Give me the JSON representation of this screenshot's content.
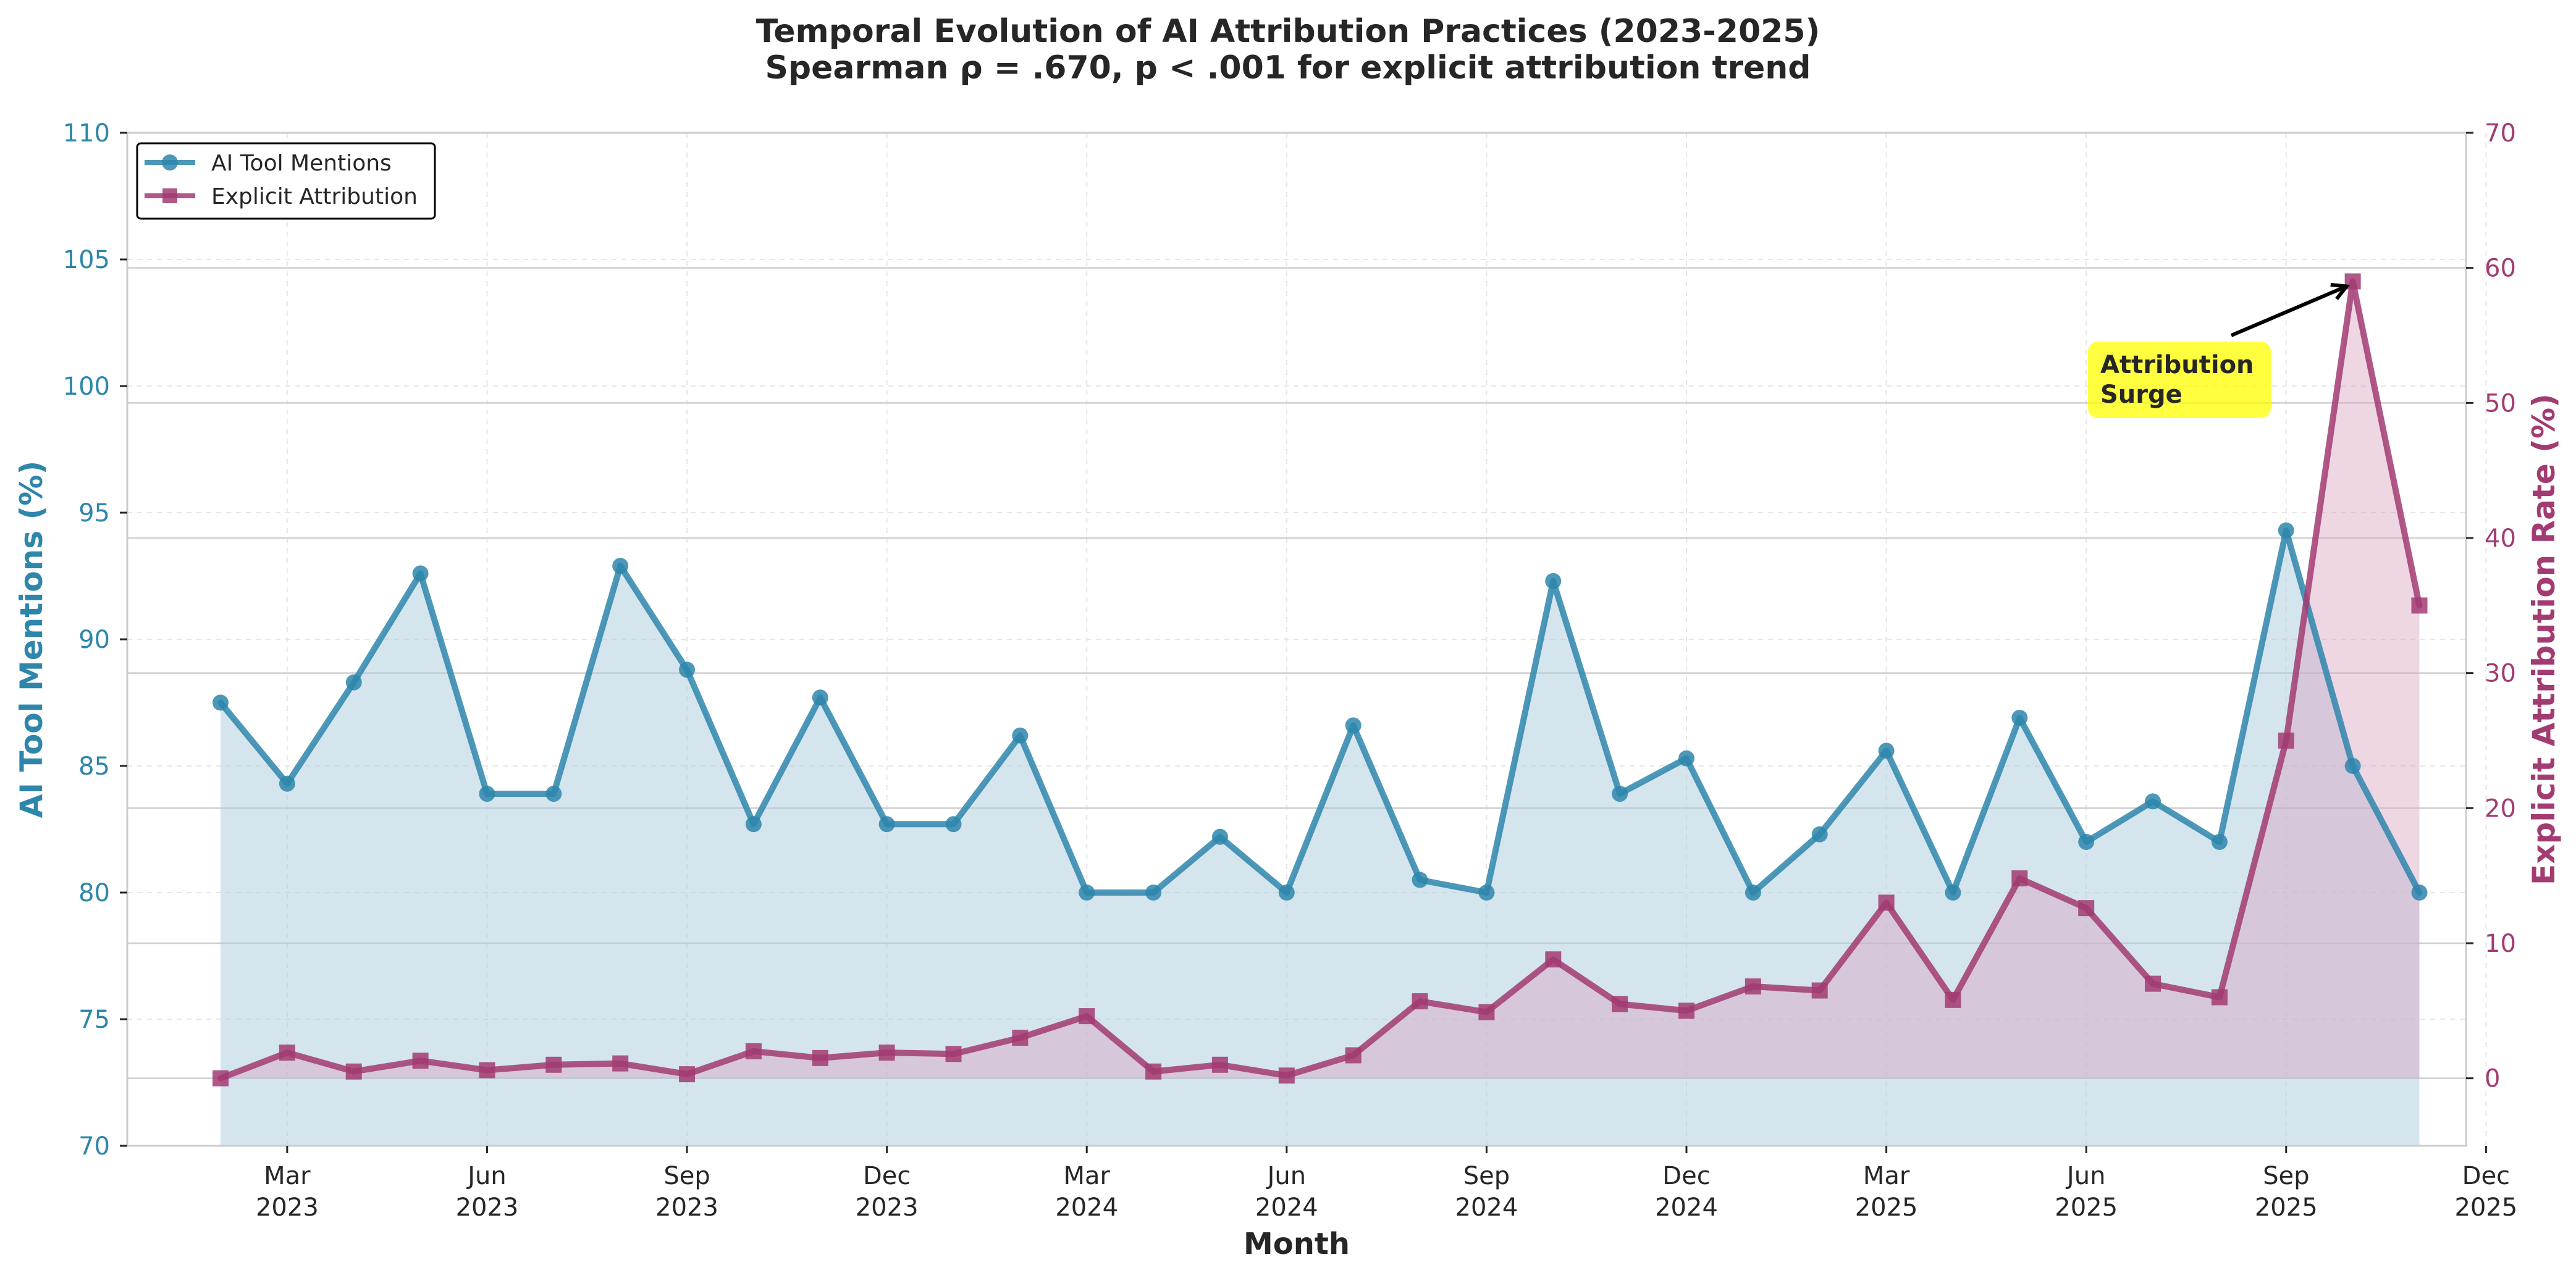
{
  "chart_data": {
    "type": "line",
    "title_line1": "Temporal Evolution of AI Attribution Practices (2023-2025)",
    "title_line2": "Spearman ρ = .670, p < .001 for explicit attribution trend",
    "xlabel": "Month",
    "ylabel_left": "AI Tool Mentions (%)",
    "ylabel_right": "Explicit Attribution Rate (%)",
    "ylim_left": [
      70,
      110
    ],
    "ylim_right": [
      -5,
      70
    ],
    "yticks_left": [
      70,
      75,
      80,
      85,
      90,
      95,
      100,
      105,
      110
    ],
    "yticks_right": [
      0,
      10,
      20,
      30,
      40,
      50,
      60,
      70
    ],
    "x_range_months": [
      -1.4,
      33.7
    ],
    "x_months": [
      0,
      1,
      2,
      3,
      4,
      5,
      6,
      7,
      8,
      9,
      10,
      11,
      12,
      13,
      14,
      15,
      16,
      17,
      18,
      19,
      20,
      21,
      22,
      23,
      24,
      25,
      26,
      27,
      28,
      29,
      30,
      31,
      32,
      33
    ],
    "xtick_months": [
      1,
      4,
      7,
      10,
      13,
      16,
      19,
      22,
      25,
      28,
      31,
      34
    ],
    "xtick_labels": [
      {
        "month": "Mar",
        "year": "2023"
      },
      {
        "month": "Jun",
        "year": "2023"
      },
      {
        "month": "Sep",
        "year": "2023"
      },
      {
        "month": "Dec",
        "year": "2023"
      },
      {
        "month": "Mar",
        "year": "2024"
      },
      {
        "month": "Jun",
        "year": "2024"
      },
      {
        "month": "Sep",
        "year": "2024"
      },
      {
        "month": "Dec",
        "year": "2024"
      },
      {
        "month": "Mar",
        "year": "2025"
      },
      {
        "month": "Jun",
        "year": "2025"
      },
      {
        "month": "Sep",
        "year": "2025"
      },
      {
        "month": "Dec",
        "year": "2025"
      }
    ],
    "series": [
      {
        "name": "AI Tool Mentions",
        "axis": "left",
        "color": "#2E86AB",
        "marker": "circle",
        "values": [
          87.5,
          84.3,
          88.3,
          92.6,
          83.9,
          83.9,
          92.9,
          88.8,
          82.7,
          87.7,
          82.7,
          82.7,
          86.2,
          80.0,
          80.0,
          82.2,
          80.0,
          86.6,
          80.5,
          80.0,
          92.3,
          83.9,
          85.3,
          80.0,
          82.3,
          85.6,
          80.0,
          86.9,
          82.0,
          83.6,
          82.0,
          94.3,
          85.0,
          80.0
        ]
      },
      {
        "name": "Explicit Attribution",
        "axis": "right",
        "color": "#A23B72",
        "marker": "square",
        "values": [
          0.0,
          1.9,
          0.5,
          1.3,
          0.6,
          1.0,
          1.1,
          0.3,
          2.0,
          1.5,
          1.9,
          1.8,
          3.0,
          4.6,
          0.5,
          1.0,
          0.2,
          1.7,
          5.7,
          4.9,
          8.8,
          5.5,
          5.0,
          6.8,
          6.5,
          13.0,
          5.8,
          14.8,
          12.6,
          7.0,
          6.0,
          25.0,
          59.0,
          35.0
        ]
      }
    ],
    "annotation": {
      "line1": "Attribution",
      "line2": "Surge",
      "target_month": 32,
      "target_value": 59.0,
      "box_color": "#FFFF00"
    },
    "legend": {
      "position": "top-left",
      "entries": [
        "AI Tool Mentions",
        "Explicit Attribution"
      ]
    },
    "colors": {
      "left_axis": "#2E86AB",
      "right_axis": "#A23B72",
      "spine": "#cccccc",
      "text": "#262626"
    }
  }
}
